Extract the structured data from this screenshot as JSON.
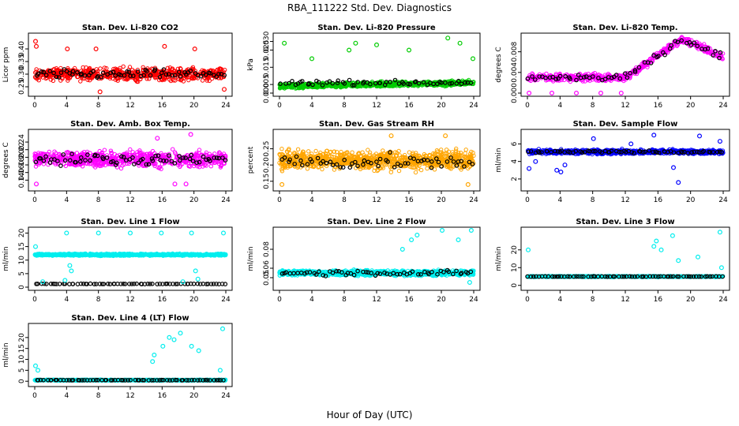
{
  "figure": {
    "title": "RBA_111222  Std. Dev. Diagnostics",
    "xlabel": "Hour of Day (UTC)"
  },
  "colors": {
    "red": "#ff0000",
    "green": "#00cc00",
    "magenta": "#ff00ff",
    "orange": "#ffa500",
    "blue": "#0000ff",
    "cyan": "#00eeee",
    "black": "#000000"
  },
  "chart_data": [
    {
      "type": "scatter",
      "title": "Stan. Dev. Li-820 CO2",
      "ylabel": "Licor ppm",
      "xlim": [
        0,
        24
      ],
      "ylim": [
        0.225,
        0.45
      ],
      "xticks": [
        "0",
        "4",
        "8",
        "12",
        "16",
        "20",
        "24"
      ],
      "yticks": [
        "0.25",
        "0.30",
        "0.35",
        "0.40"
      ],
      "color": "red",
      "series": [
        {
          "name": "main",
          "baseline": 0.3,
          "spread": 0.035,
          "density": 600
        },
        {
          "name": "black",
          "baseline": 0.3,
          "spread": 0.025,
          "density": 70
        }
      ],
      "outliers": [
        [
          0.1,
          0.43
        ],
        [
          0.2,
          0.41
        ],
        [
          4.1,
          0.4
        ],
        [
          7.7,
          0.4
        ],
        [
          8.2,
          0.23
        ],
        [
          16.3,
          0.41
        ],
        [
          20.1,
          0.4
        ],
        [
          23.8,
          0.24
        ]
      ]
    },
    {
      "type": "scatter",
      "title": "Stan. Dev. Li-820 Pressure",
      "ylabel": "kPa",
      "xlim": [
        0,
        24
      ],
      "ylim": [
        0,
        0.033
      ],
      "xticks": [
        "0",
        "4",
        "8",
        "12",
        "16",
        "20",
        "24"
      ],
      "yticks": [
        "0.000",
        "0.005",
        "0.015",
        "0.025",
        "0.030"
      ],
      "color": "green",
      "series": [
        {
          "name": "main",
          "baseline": 0.004,
          "spread": 0.002,
          "density": 800
        },
        {
          "name": "black",
          "baseline": 0.006,
          "spread": 0.002,
          "density": 60
        }
      ],
      "outliers": [
        [
          0.6,
          0.029
        ],
        [
          4.0,
          0.02
        ],
        [
          8.6,
          0.025
        ],
        [
          9.4,
          0.029
        ],
        [
          12.0,
          0.028
        ],
        [
          16.0,
          0.025
        ],
        [
          20.8,
          0.032
        ],
        [
          22.3,
          0.029
        ],
        [
          23.9,
          0.02
        ]
      ]
    },
    {
      "type": "scatter",
      "title": "Stan. Dev. Li-820 Temp.",
      "ylabel": "degrees C",
      "xlim": [
        0,
        24
      ],
      "ylim": [
        0,
        0.011
      ],
      "xticks": [
        "0",
        "4",
        "8",
        "12",
        "16",
        "20",
        "24"
      ],
      "yticks": [
        "0.000",
        "0.004",
        "0.008"
      ],
      "color": "magenta",
      "series": [
        {
          "name": "main",
          "baseline": 0.003,
          "spread": 0.001,
          "density": 500
        },
        {
          "name": "black",
          "baseline": 0.003,
          "spread": 0.001,
          "density": 60
        }
      ],
      "outliers": [
        [
          0.2,
          0.0
        ],
        [
          3.0,
          0.0
        ],
        [
          6.0,
          0.0
        ],
        [
          9.0,
          0.0
        ],
        [
          11.5,
          0.0
        ]
      ]
    },
    {
      "type": "scatter",
      "title": "Stan. Dev. Amb. Box Temp.",
      "ylabel": "degrees C",
      "xlim": [
        0,
        24
      ],
      "ylim": [
        0.12,
        0.265
      ],
      "xticks": [
        "0",
        "4",
        "8",
        "12",
        "16",
        "20",
        "24"
      ],
      "yticks": [
        "0.14",
        "0.16",
        "0.18",
        "0.20",
        "0.22",
        "0.24"
      ],
      "color": "magenta",
      "series": [
        {
          "name": "main",
          "baseline": 0.195,
          "spread": 0.03,
          "density": 700
        },
        {
          "name": "black",
          "baseline": 0.195,
          "spread": 0.02,
          "density": 70
        }
      ],
      "outliers": [
        [
          0.2,
          0.13
        ],
        [
          17.6,
          0.13
        ],
        [
          19.0,
          0.13
        ],
        [
          15.4,
          0.25
        ],
        [
          19.6,
          0.26
        ]
      ]
    },
    {
      "type": "scatter",
      "title": "Stan. Dev. Gas Stream RH",
      "ylabel": "percent",
      "xlim": [
        0,
        24
      ],
      "ylim": [
        0.13,
        0.3
      ],
      "xticks": [
        "0",
        "4",
        "8",
        "12",
        "16",
        "20",
        "24"
      ],
      "yticks": [
        "0.15",
        "0.20",
        "0.25"
      ],
      "color": "orange",
      "series": [
        {
          "name": "main",
          "baseline": 0.215,
          "spread": 0.04,
          "density": 900
        },
        {
          "name": "black",
          "baseline": 0.21,
          "spread": 0.03,
          "density": 60
        }
      ],
      "outliers": [
        [
          0.3,
          0.14
        ],
        [
          23.3,
          0.14
        ],
        [
          13.8,
          0.29
        ],
        [
          20.5,
          0.29
        ]
      ]
    },
    {
      "type": "scatter",
      "title": "Stan. Dev. Sample Flow",
      "ylabel": "ml/min",
      "xlim": [
        0,
        24
      ],
      "ylim": [
        1,
        7.3
      ],
      "xticks": [
        "0",
        "4",
        "8",
        "12",
        "16",
        "20",
        "24"
      ],
      "yticks": [
        "2",
        "4",
        "6"
      ],
      "color": "blue",
      "series": [
        {
          "name": "main",
          "baseline": 5.1,
          "spread": 0.35,
          "density": 700
        },
        {
          "name": "black",
          "baseline": 5.1,
          "spread": 0.2,
          "density": 70
        }
      ],
      "outliers": [
        [
          0.2,
          3.2
        ],
        [
          1.0,
          4.0
        ],
        [
          3.6,
          3.0
        ],
        [
          4.1,
          2.8
        ],
        [
          4.6,
          3.6
        ],
        [
          15.5,
          7.0
        ],
        [
          17.9,
          3.3
        ],
        [
          18.5,
          1.6
        ],
        [
          21.1,
          6.9
        ],
        [
          23.6,
          6.3
        ],
        [
          8.1,
          6.6
        ],
        [
          12.7,
          6.0
        ]
      ]
    },
    {
      "type": "scatter",
      "title": "Stan. Dev. Line 1 Flow",
      "ylabel": "ml/min",
      "xlim": [
        0,
        24
      ],
      "ylim": [
        0,
        21
      ],
      "xticks": [
        "0",
        "4",
        "8",
        "12",
        "16",
        "20",
        "24"
      ],
      "yticks": [
        "0",
        "5",
        "10",
        "15",
        "20"
      ],
      "color": "cyan",
      "series": [
        {
          "name": "main",
          "baseline": 12.0,
          "spread": 0.5,
          "density": 700
        },
        {
          "name": "black",
          "baseline": 1.2,
          "spread": 0.1,
          "density": 70
        }
      ],
      "outliers": [
        [
          0.1,
          15
        ],
        [
          4.0,
          20
        ],
        [
          4.4,
          8
        ],
        [
          4.6,
          6
        ],
        [
          8.0,
          20
        ],
        [
          12.0,
          20
        ],
        [
          15.9,
          20
        ],
        [
          19.7,
          20
        ],
        [
          20.2,
          6
        ],
        [
          20.5,
          3
        ],
        [
          23.7,
          20
        ],
        [
          1.0,
          2
        ],
        [
          3.8,
          2.5
        ],
        [
          18.6,
          2
        ]
      ]
    },
    {
      "type": "scatter",
      "title": "Stan. Dev. Line 2 Flow",
      "ylabel": "ml/min",
      "xlim": [
        0,
        24
      ],
      "ylim": [
        0.04,
        0.1
      ],
      "xticks": [
        "0",
        "4",
        "8",
        "12",
        "16",
        "20",
        "24"
      ],
      "yticks": [
        "0.05",
        "0.06",
        "0.08"
      ],
      "color": "cyan",
      "series": [
        {
          "name": "main",
          "baseline": 0.055,
          "spread": 0.004,
          "density": 800
        },
        {
          "name": "black",
          "baseline": 0.055,
          "spread": 0.004,
          "density": 60
        }
      ],
      "outliers": [
        [
          15.2,
          0.08
        ],
        [
          16.3,
          0.09
        ],
        [
          17.0,
          0.095
        ],
        [
          20.1,
          0.1
        ],
        [
          22.1,
          0.09
        ],
        [
          23.7,
          0.1
        ],
        [
          23.5,
          0.045
        ]
      ]
    },
    {
      "type": "scatter",
      "title": "Stan. Dev. Line 3 Flow",
      "ylabel": "ml/min",
      "xlim": [
        0,
        24
      ],
      "ylim": [
        -1,
        31
      ],
      "xticks": [
        "0",
        "4",
        "8",
        "12",
        "16",
        "20",
        "24"
      ],
      "yticks": [
        "0",
        "10",
        "20"
      ],
      "color": "cyan",
      "series": [
        {
          "name": "main",
          "baseline": 5.0,
          "spread": 0.4,
          "density": 700
        },
        {
          "name": "black",
          "baseline": 5.0,
          "spread": 0.2,
          "density": 70
        }
      ],
      "outliers": [
        [
          0.1,
          20
        ],
        [
          15.5,
          22
        ],
        [
          15.8,
          25
        ],
        [
          16.4,
          20
        ],
        [
          17.8,
          28
        ],
        [
          18.5,
          14
        ],
        [
          20.9,
          16
        ],
        [
          23.6,
          30
        ],
        [
          23.8,
          10
        ]
      ]
    },
    {
      "type": "scatter",
      "title": "Stan. Dev. Line 4 (LT) Flow",
      "ylabel": "ml/min",
      "xlim": [
        0,
        24
      ],
      "ylim": [
        -1,
        25
      ],
      "xticks": [
        "0",
        "4",
        "8",
        "12",
        "16",
        "20",
        "24"
      ],
      "yticks": [
        "0",
        "5",
        "10",
        "15",
        "20"
      ],
      "color": "cyan",
      "series": [
        {
          "name": "main",
          "baseline": 0.5,
          "spread": 0.3,
          "density": 700
        },
        {
          "name": "black",
          "baseline": 0.5,
          "spread": 0.1,
          "density": 70
        }
      ],
      "outliers": [
        [
          0.1,
          7
        ],
        [
          0.4,
          5
        ],
        [
          15.0,
          12
        ],
        [
          16.1,
          16
        ],
        [
          16.9,
          20
        ],
        [
          17.5,
          19
        ],
        [
          18.3,
          22
        ],
        [
          19.7,
          16
        ],
        [
          20.6,
          14
        ],
        [
          23.3,
          5
        ],
        [
          23.6,
          24
        ],
        [
          14.8,
          9
        ]
      ]
    }
  ]
}
